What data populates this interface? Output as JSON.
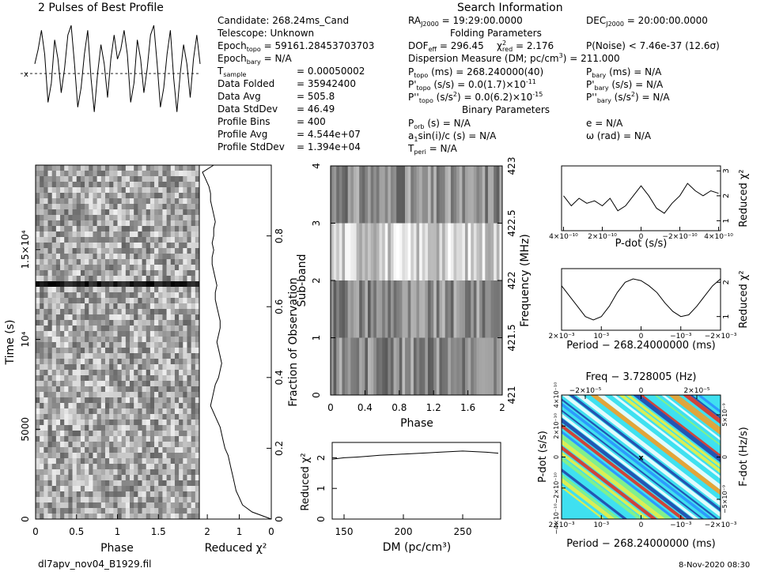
{
  "header": {
    "title": "2 Pulses of Best Profile",
    "search_title": "Search Information",
    "folding_title": "Folding Parameters",
    "binary_title": "Binary Parameters",
    "candidate": "Candidate:  268.24ms_Cand",
    "telescope": "Telescope:  Unknown",
    "epoch_topo_label": "Epoch",
    "epoch_topo_sub": "topo",
    "epoch_topo_value": " = 59161.28453703703",
    "epoch_bary_label": "Epoch",
    "epoch_bary_sub": "bary",
    "epoch_bary_value": " = N/A",
    "stats": [
      {
        "label": "T",
        "sub": "sample",
        "value": "=   0.00050002"
      },
      {
        "label": "Data Folded",
        "sub": "",
        "value": "=   35942400"
      },
      {
        "label": "Data Avg",
        "sub": "",
        "value": "=   505.8"
      },
      {
        "label": "Data StdDev",
        "sub": "",
        "value": "=   46.49"
      },
      {
        "label": "Profile Bins",
        "sub": "",
        "value": "=   400"
      },
      {
        "label": "Profile Avg",
        "sub": "",
        "value": "=   4.544e+07"
      },
      {
        "label": "Profile StdDev",
        "sub": "",
        "value": "=   1.394e+04"
      }
    ],
    "ra": "RA",
    "ra_sub": "J2000",
    "ra_value": " = 19:29:00.0000",
    "dec": "DEC",
    "dec_sub": "J2000",
    "dec_value": " = 20:00:00.0000",
    "dof": "DOF",
    "dof_sub": "eff",
    "dof_value": " = 296.45",
    "chi": "χ",
    "chi_sup": "2",
    "chi_sub": "red",
    "chi_value": " = 2.176",
    "pnoise": "P(Noise) < 7.46e-37   (12.6σ)",
    "dm": "Dispersion Measure (DM; pc/cm",
    "dm_sup": "3",
    "dm_value": ") = 211.000",
    "ptopo": "P",
    "ptopo_sub": "topo",
    "ptopo_value": " (ms)  =  268.240000(40)",
    "pbary": "P",
    "pbary_sub": "bary",
    "pbary_value": " (ms) = N/A",
    "pdtopo": "P'",
    "pdtopo_sub": "topo",
    "pdtopo_value": " (s/s) = 0.0(1.7)×10",
    "pdtopo_exp": "-11",
    "pdbary": "P'",
    "pdbary_sub": "bary",
    "pdbary_value": " (s/s) = N/A",
    "pddtopo": "P''",
    "pddtopo_sub": "topo",
    "pddtopo_value": " (s/s",
    "pddtopo_sup": "2",
    "pddtopo_value2": ") = 0.0(6.2)×10",
    "pddtopo_exp": "-15",
    "pddbary": "P''",
    "pddbary_sub": "bary",
    "pddbary_value": " (s/s",
    "pddbary_sup": "2",
    "pddbary_value2": ") = N/A",
    "porb": "P",
    "porb_sub": "orb",
    "porb_value": " (s) = N/A",
    "a1": "a",
    "a1_sub": "1",
    "a1_value": "sin(i)/c (s) = N/A",
    "tperi": "T",
    "tperi_sub": "peri",
    "tperi_value": " = N/A",
    "ecc": "e = N/A",
    "omega": "ω (rad) = N/A"
  },
  "footer": {
    "filename": "dl7apv_nov04_B1929.fil",
    "date": "8-Nov-2020 08:30"
  },
  "colors": {
    "axis": "#000000",
    "line": "#000000",
    "background": "#ffffff"
  },
  "chart_data": [
    {
      "id": "profile",
      "type": "line",
      "title": "2 Pulses of Best Profile",
      "x": [
        0,
        0.04,
        0.08,
        0.12,
        0.16,
        0.2,
        0.24,
        0.28,
        0.32,
        0.36,
        0.4,
        0.44,
        0.48,
        0.52,
        0.56,
        0.6,
        0.64,
        0.68,
        0.72,
        0.76,
        0.8,
        0.84,
        0.88,
        0.92,
        0.96,
        1.0,
        1.04,
        1.08,
        1.12,
        1.16,
        1.2,
        1.24,
        1.28,
        1.32,
        1.36,
        1.4,
        1.44,
        1.48,
        1.52,
        1.56,
        1.6,
        1.64,
        1.68,
        1.72,
        1.76,
        1.8,
        1.84,
        1.88,
        1.92,
        1.96,
        2.0
      ],
      "values": [
        0.2,
        0.5,
        0.9,
        0.4,
        -0.6,
        -0.2,
        0.7,
        0.3,
        -0.4,
        0.1,
        0.8,
        1.0,
        0.2,
        -0.7,
        -0.3,
        0.4,
        0.9,
        -0.1,
        -0.8,
        0.0,
        0.6,
        0.2,
        -0.5,
        0.3,
        0.8,
        0.3,
        0.5,
        0.9,
        0.4,
        -0.6,
        -0.2,
        0.7,
        0.3,
        -0.4,
        0.1,
        0.8,
        1.0,
        0.2,
        -0.7,
        -0.3,
        0.4,
        0.9,
        -0.1,
        -0.8,
        0.0,
        0.6,
        0.2,
        -0.5,
        0.3,
        0.8,
        0.2
      ],
      "xlim": [
        0,
        2
      ],
      "ylim": [
        -1.1,
        1.2
      ],
      "avg_marker": "x"
    },
    {
      "id": "time_phase",
      "type": "heatmap",
      "xlabel": "Phase",
      "ylabel": "Time (s)",
      "xlim": [
        0,
        2
      ],
      "ylim": [
        0,
        19700
      ],
      "x_ticks": [
        "0",
        "0.5",
        "1",
        "1.5"
      ],
      "x_tick_values": [
        0,
        0.5,
        1,
        1.5
      ],
      "y_ticks": [
        "0",
        "5000",
        "10⁴",
        "1.5×10⁴"
      ],
      "y_tick_values": [
        0,
        5000,
        10000,
        15000
      ],
      "rows": 64,
      "cols": 40
    },
    {
      "id": "time_chi2",
      "type": "line",
      "xlabel": "Reduced χ²",
      "ylabel": "Fraction of Observation",
      "x_ticks": [
        "2",
        "1",
        "0"
      ],
      "x_tick_values": [
        2,
        1,
        0
      ],
      "y_ticks": [
        "0",
        "0.2",
        "0.4",
        "0.6",
        "0.8"
      ],
      "y_tick_values": [
        0,
        0.2,
        0.4,
        0.6,
        0.8
      ],
      "xlim": [
        2.25,
        0
      ],
      "ylim": [
        0,
        1
      ],
      "y": [
        0,
        0.02,
        0.04,
        0.06,
        0.08,
        0.1,
        0.12,
        0.14,
        0.16,
        0.18,
        0.2,
        0.22,
        0.24,
        0.26,
        0.28,
        0.3,
        0.32,
        0.34,
        0.36,
        0.38,
        0.4,
        0.42,
        0.44,
        0.46,
        0.48,
        0.5,
        0.52,
        0.54,
        0.56,
        0.58,
        0.6,
        0.62,
        0.64,
        0.66,
        0.68,
        0.7,
        0.72,
        0.74,
        0.76,
        0.78,
        0.8,
        0.82,
        0.84,
        0.86,
        0.88,
        0.9,
        0.92,
        0.94,
        0.96,
        0.98,
        1.0
      ],
      "values": [
        0.0,
        0.6,
        0.9,
        1.0,
        1.1,
        1.15,
        1.2,
        1.25,
        1.3,
        1.35,
        1.45,
        1.5,
        1.55,
        1.6,
        1.7,
        1.8,
        1.9,
        1.85,
        1.8,
        1.75,
        1.65,
        1.6,
        1.55,
        1.6,
        1.65,
        1.7,
        1.65,
        1.6,
        1.6,
        1.65,
        1.7,
        1.75,
        1.75,
        1.7,
        1.75,
        1.8,
        1.85,
        1.85,
        1.8,
        1.85,
        1.8,
        1.8,
        1.75,
        1.8,
        1.85,
        1.9,
        1.9,
        1.95,
        2.05,
        2.15,
        1.8
      ]
    },
    {
      "id": "subband_phase",
      "type": "heatmap",
      "xlabel": "Phase",
      "ylabel": "Sub-band",
      "right_label": "Frequency (MHz)",
      "xlim": [
        0,
        2
      ],
      "ylim": [
        0,
        4
      ],
      "x_ticks": [
        "0",
        "0.4",
        "0.8",
        "1.2",
        "1.6",
        "2"
      ],
      "x_tick_values": [
        0,
        0.4,
        0.8,
        1.2,
        1.6,
        2
      ],
      "y_ticks": [
        "0",
        "1",
        "2",
        "3",
        "4"
      ],
      "y_tick_values": [
        0,
        1,
        2,
        3,
        4
      ],
      "right_ticks": [
        "421",
        "421.5",
        "422",
        "422.5",
        "423"
      ],
      "right_tick_values": [
        421,
        421.5,
        422,
        422.5,
        423
      ],
      "rows": 4,
      "cols": 60
    },
    {
      "id": "dm_chi2",
      "type": "line",
      "xlabel": "DM (pc/cm³)",
      "ylabel": "Reduced χ²",
      "xlim": [
        140,
        282
      ],
      "ylim": [
        0,
        2.5
      ],
      "x_ticks": [
        "150",
        "200",
        "250"
      ],
      "x_tick_values": [
        150,
        200,
        250
      ],
      "y_ticks": [
        "0",
        "1",
        "2"
      ],
      "y_tick_values": [
        0,
        1,
        2
      ],
      "x": [
        140,
        150,
        160,
        170,
        180,
        190,
        200,
        210,
        220,
        230,
        240,
        250,
        260,
        270,
        280
      ],
      "values": [
        1.95,
        2.0,
        2.02,
        2.05,
        2.08,
        2.1,
        2.12,
        2.14,
        2.16,
        2.18,
        2.2,
        2.22,
        2.2,
        2.18,
        2.15
      ]
    },
    {
      "id": "pdot_chi2",
      "type": "line",
      "xlabel": "P-dot (s/s)",
      "ylabel": "Reduced χ²",
      "x_ticks": [
        "4×10⁻¹⁰",
        "2×10⁻¹⁰",
        "0",
        "−2×10⁻¹⁰",
        "4×10⁻¹⁰"
      ],
      "x_tick_values": [
        4e-10,
        2e-10,
        0,
        -2e-10,
        -4e-10
      ],
      "right_ticks": [
        "1",
        "2",
        "3"
      ],
      "right_tick_values": [
        1,
        2,
        3
      ],
      "xlim": [
        4.1e-10,
        -4.1e-10
      ],
      "ylim": [
        0.6,
        3.2
      ],
      "x": [
        4e-10,
        3.6e-10,
        3.2e-10,
        2.8e-10,
        2.4e-10,
        2e-10,
        1.6e-10,
        1.2e-10,
        8e-11,
        4e-11,
        0,
        -4e-11,
        -8e-11,
        -1.2e-10,
        -1.6e-10,
        -2e-10,
        -2.4e-10,
        -2.8e-10,
        -3.2e-10,
        -3.6e-10,
        -4e-10
      ],
      "values": [
        2.0,
        1.6,
        1.9,
        1.7,
        1.8,
        1.6,
        1.9,
        1.4,
        1.6,
        2.0,
        2.4,
        2.0,
        1.5,
        1.3,
        1.7,
        2.0,
        2.5,
        2.2,
        2.0,
        2.2,
        2.1
      ]
    },
    {
      "id": "period_chi2",
      "type": "line",
      "xlabel": "Period − 268.24000000 (ms)",
      "ylabel": "Reduced χ²",
      "x_ticks": [
        "2×10⁻³",
        "10⁻³",
        "0",
        "−10⁻³",
        "−2×10⁻³"
      ],
      "x_tick_values": [
        0.002,
        0.001,
        0,
        -0.001,
        -0.002
      ],
      "right_ticks": [
        "1",
        "2"
      ],
      "right_tick_values": [
        1,
        2
      ],
      "xlim": [
        0.002,
        -0.002
      ],
      "ylim": [
        0.6,
        2.4
      ],
      "x": [
        0.002,
        0.0018,
        0.0016,
        0.0014,
        0.0012,
        0.001,
        0.0008,
        0.0006,
        0.0004,
        0.0002,
        0,
        -0.0002,
        -0.0004,
        -0.0006,
        -0.0008,
        -0.001,
        -0.0012,
        -0.0014,
        -0.0016,
        -0.0018,
        -0.002
      ],
      "values": [
        1.9,
        1.6,
        1.3,
        1.0,
        0.9,
        1.0,
        1.3,
        1.7,
        2.0,
        2.1,
        2.05,
        1.9,
        1.7,
        1.4,
        1.15,
        1.0,
        1.05,
        1.3,
        1.6,
        1.9,
        2.1
      ]
    },
    {
      "id": "ppdot_plane",
      "type": "heatmap",
      "title": "Freq − 3.728005 (Hz)",
      "xlabel": "Period − 268.24000000 (ms)",
      "ylabel": "P-dot (s/s)",
      "right_label": "F-dot (Hz/s)",
      "bottom_ticks": [
        "2×10⁻³",
        "10⁻³",
        "0",
        "−10⁻³",
        "−2×10⁻³"
      ],
      "top_ticks": [
        "−2×10⁻⁵",
        "0",
        "2×10⁻⁵"
      ],
      "left_ticks": [
        "4×10⁻¹⁰",
        "2×10⁻¹⁰",
        "0",
        "−2×10⁻¹⁰",
        "−4×10⁻¹⁰"
      ],
      "right_ticks": [
        "5×10⁻⁹",
        "0",
        "−5×10⁻⁹"
      ],
      "best_marker": "x"
    }
  ]
}
